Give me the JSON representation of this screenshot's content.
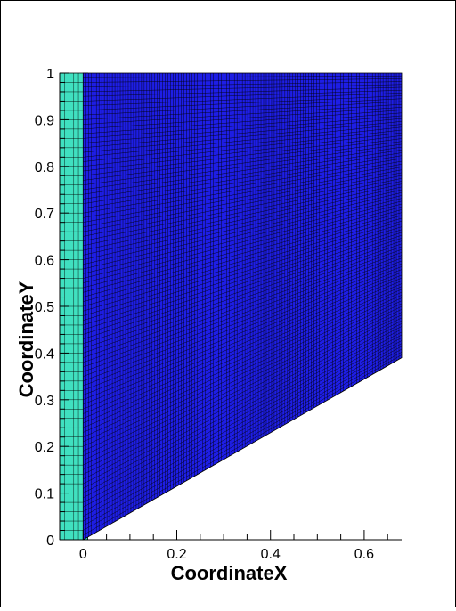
{
  "chart_data": {
    "type": "mesh",
    "xlabel": "CoordinateX",
    "ylabel": "CoordinateY",
    "xlim": [
      -0.05,
      0.68
    ],
    "ylim": [
      0,
      1
    ],
    "x_ticks": [
      {
        "value": 0,
        "label": "0"
      },
      {
        "value": 0.2,
        "label": "0.2"
      },
      {
        "value": 0.4,
        "label": "0.4"
      },
      {
        "value": 0.6,
        "label": "0.6"
      }
    ],
    "x_minor_step": 0.05,
    "y_ticks": [
      {
        "value": 0,
        "label": "0"
      },
      {
        "value": 0.1,
        "label": "0.1"
      },
      {
        "value": 0.2,
        "label": "0.2"
      },
      {
        "value": 0.3,
        "label": "0.3"
      },
      {
        "value": 0.4,
        "label": "0.4"
      },
      {
        "value": 0.5,
        "label": "0.5"
      },
      {
        "value": 0.6,
        "label": "0.6"
      },
      {
        "value": 0.7,
        "label": "0.7"
      },
      {
        "value": 0.8,
        "label": "0.8"
      },
      {
        "value": 0.9,
        "label": "0.9"
      },
      {
        "value": 1,
        "label": "1"
      }
    ],
    "y_minor_step": 0.02,
    "zones": [
      {
        "name": "",
        "fill": "#40E0C0",
        "polygon": [
          [
            -0.05,
            0
          ],
          [
            0.01,
            0
          ],
          [
            0.01,
            1
          ],
          [
            -0.05,
            1
          ]
        ],
        "i_lines": 6,
        "j_lines": 50
      },
      {
        "name": "",
        "fill": "#1E1EE6",
        "polygon": [
          [
            0,
            0
          ],
          [
            0.68,
            0.39
          ],
          [
            0.68,
            1
          ],
          [
            0,
            1
          ]
        ],
        "i_lines": 120,
        "j_lines": 100
      }
    ],
    "grid": false
  }
}
